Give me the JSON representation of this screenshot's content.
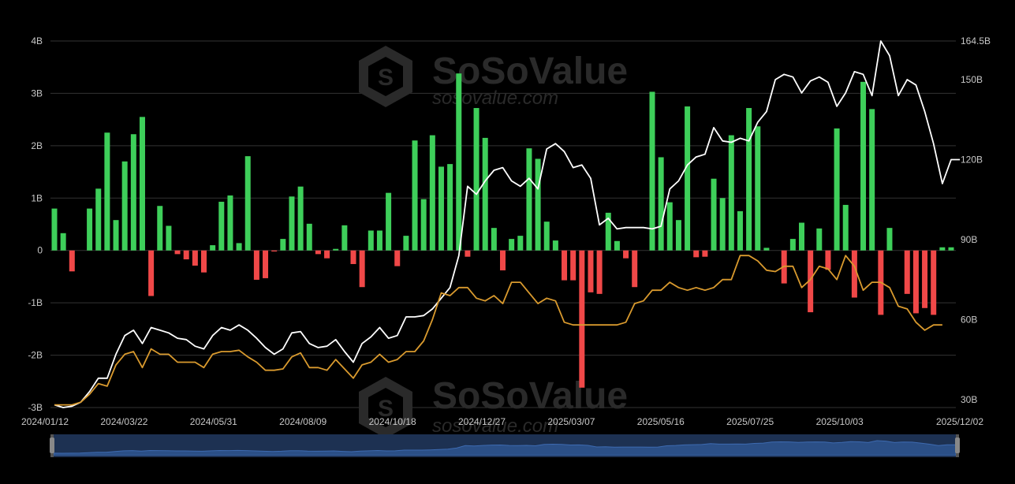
{
  "watermark": {
    "name": "SoSoValue",
    "url": "sosovalue.com"
  },
  "chart_data": {
    "type": "bar+line",
    "left_axis": {
      "ticks": [
        "4B",
        "3B",
        "2B",
        "1B",
        "0",
        "-1B",
        "-2B",
        "-3B"
      ],
      "range": [
        -3,
        4
      ]
    },
    "right_axis": {
      "ticks": [
        "164.5B",
        "150B",
        "120B",
        "90B",
        "60B",
        "30B"
      ],
      "range": [
        27,
        164.5
      ]
    },
    "x_tick_labels": [
      "2024/01/12",
      "2024/03/22",
      "2024/05/31",
      "2024/08/09",
      "2024/10/18",
      "2024/12/27",
      "2025/03/07",
      "2025/05/16",
      "2025/07/25",
      "2025/10/03",
      "2025/12/02"
    ],
    "series": [
      {
        "kind": "bar",
        "axis": "left",
        "positive_color": "#3ecf5a",
        "negative_color": "#f04848",
        "values": [
          0.8,
          0.33,
          -0.4,
          0.0,
          0.8,
          1.18,
          2.25,
          0.58,
          1.7,
          2.22,
          2.55,
          -0.87,
          0.85,
          0.47,
          -0.07,
          -0.17,
          -0.29,
          -0.42,
          0.1,
          0.93,
          1.05,
          0.14,
          1.8,
          -0.56,
          -0.53,
          -0.02,
          0.22,
          1.03,
          1.22,
          0.51,
          -0.07,
          -0.15,
          0.03,
          0.48,
          -0.26,
          -0.7,
          0.38,
          0.38,
          1.1,
          -0.3,
          0.28,
          2.1,
          0.98,
          2.2,
          1.6,
          1.65,
          3.38,
          -0.12,
          2.72,
          2.15,
          0.43,
          -0.38,
          0.22,
          0.28,
          1.95,
          1.75,
          0.55,
          0.19,
          -0.57,
          -0.57,
          -2.62,
          -0.8,
          -0.83,
          0.72,
          0.18,
          -0.15,
          -0.7,
          0.0,
          3.03,
          1.78,
          0.92,
          0.58,
          2.75,
          -0.13,
          -0.12,
          1.37,
          1.0,
          2.2,
          0.75,
          2.72,
          2.37,
          0.05,
          0.0,
          -0.63,
          0.22,
          0.53,
          -1.18,
          0.42,
          -0.37,
          2.33,
          0.87,
          -0.9,
          3.22,
          2.7,
          -1.23,
          0.43,
          0.0,
          -0.83,
          -1.2,
          -1.1,
          -1.23,
          0.06,
          0.06
        ]
      },
      {
        "kind": "line",
        "axis": "right",
        "color": "#ffffff",
        "values": [
          28,
          27,
          27.5,
          29,
          33,
          38,
          38,
          47,
          54,
          56,
          51,
          57,
          56,
          55,
          53,
          52.5,
          50,
          49,
          54,
          57,
          56,
          58,
          56,
          53,
          49.5,
          47,
          49,
          55,
          55.5,
          51,
          49.5,
          50,
          52.5,
          48,
          44,
          51,
          53.5,
          57,
          53,
          54,
          61,
          61,
          61.5,
          64,
          68,
          72,
          84,
          110,
          107,
          112,
          116,
          117,
          112,
          110,
          113,
          109,
          124,
          126,
          123,
          117,
          118,
          113,
          95.5,
          98,
          94,
          94.5,
          94.5,
          94.5,
          94,
          95,
          109,
          112,
          118,
          121,
          122,
          132,
          127,
          126.5,
          128,
          127,
          134,
          138,
          150,
          152,
          151,
          145,
          149.5,
          151,
          149,
          140,
          145,
          153,
          152,
          144,
          164.5,
          159,
          144,
          150,
          148,
          138,
          126,
          111,
          120,
          120
        ]
      },
      {
        "kind": "line",
        "axis": "right",
        "color": "#d99a2e",
        "values": [
          28,
          28,
          28,
          29,
          32,
          36,
          35,
          43,
          47,
          48,
          42,
          49,
          47,
          47,
          44,
          44,
          44,
          42,
          47,
          48,
          48,
          48.5,
          46,
          44,
          41,
          41,
          41.5,
          46,
          47.5,
          42,
          42,
          41,
          45,
          41.5,
          38,
          43,
          44,
          47,
          44,
          45,
          48,
          48,
          52,
          60,
          70,
          69,
          72,
          72,
          68,
          67,
          69,
          66,
          74,
          74,
          70,
          66,
          68,
          67,
          59,
          58,
          58,
          58,
          58,
          58,
          58,
          59,
          66,
          67,
          71,
          71,
          74,
          72,
          71,
          72,
          71,
          72,
          75,
          75,
          84,
          84,
          82,
          78.5,
          78,
          80,
          80,
          72,
          75,
          80,
          79,
          75,
          84,
          80,
          71,
          74,
          74,
          72,
          65,
          64,
          59,
          56,
          58,
          58
        ]
      }
    ],
    "grid": "horizontal"
  }
}
